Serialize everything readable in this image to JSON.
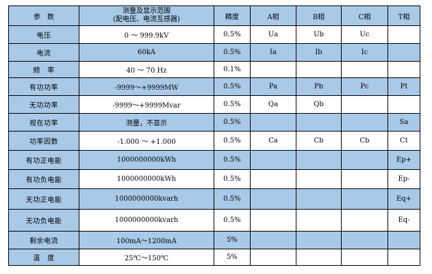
{
  "table": {
    "header": [
      "参　数",
      [
        "测量及显示范围",
        "(配电压、电流互感器)"
      ],
      "精度",
      "A相",
      "B相",
      "C相",
      "T相"
    ],
    "rows": [
      [
        "电压",
        "0 ～ 999.9kV",
        "0.5%",
        "Ua",
        "Ub",
        "Uc",
        null
      ],
      [
        "电流",
        "60kA",
        "0.5%",
        "Ia",
        "Ib",
        "Ic",
        null
      ],
      [
        "频　率",
        "40 ～ 70 Hz",
        "0.1%",
        null,
        null,
        null,
        null
      ],
      [
        "有功功率",
        "-9999～+9999MW",
        "0.5%",
        "Pa",
        "Pb",
        "Pc",
        "Pt"
      ],
      [
        "无功功率",
        "-9999～+9999Mvar",
        "0.5%",
        "Qa",
        "Qb",
        null,
        null
      ],
      [
        "视在功率",
        "测量，不显示",
        "0.5%",
        null,
        null,
        null,
        "Sa"
      ],
      [
        "功率因数",
        "-1.000 ～ +1.000",
        "0.5%",
        "Ca",
        "Cb",
        "Cb",
        "Ct"
      ],
      [
        "有功正电能",
        "1000000000kWh",
        "0.5%",
        null,
        null,
        null,
        "Ep+"
      ],
      [
        "有功负电能",
        "1000000000kWh",
        "0.5%",
        null,
        null,
        null,
        "Ep-"
      ],
      [
        "无功正电能",
        "1000000000kvarh",
        "0.5%",
        null,
        null,
        null,
        "Eq+"
      ],
      [
        "无功负电能",
        "1000000000kvarh",
        "0.5%",
        null,
        null,
        null,
        "Eq-"
      ],
      [
        "剩余电流",
        "100mA～1200mA",
        "5%",
        null,
        null,
        null,
        null
      ],
      [
        "温　度",
        "25℃～150℃",
        "5%",
        null,
        null,
        null,
        null
      ]
    ]
  }
}
